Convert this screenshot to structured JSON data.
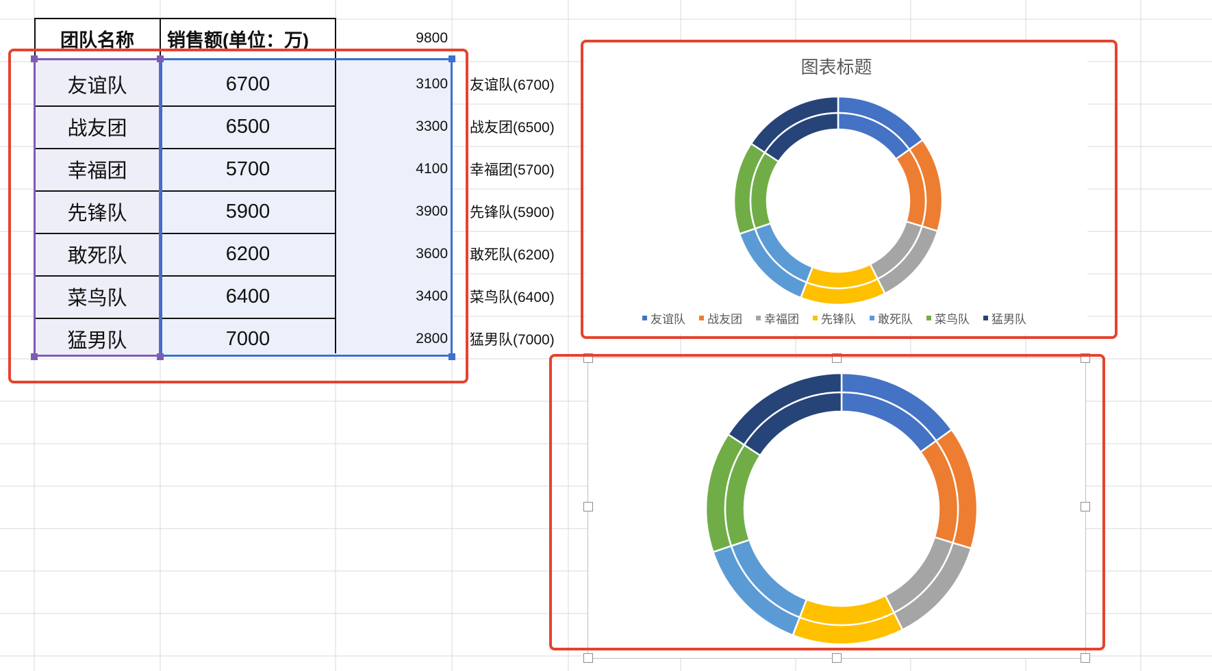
{
  "table": {
    "header": {
      "team": "团队名称",
      "sales": "销售额(单位：万)",
      "aux": "9800"
    },
    "rows": [
      {
        "team": "友谊队",
        "sales": "6700",
        "aux": "3100",
        "label": "友谊队(6700)"
      },
      {
        "team": "战友团",
        "sales": "6500",
        "aux": "3300",
        "label": "战友团(6500)"
      },
      {
        "team": "幸福团",
        "sales": "5700",
        "aux": "4100",
        "label": "幸福团(5700)"
      },
      {
        "team": "先锋队",
        "sales": "5900",
        "aux": "3900",
        "label": "先锋队(5900)"
      },
      {
        "team": "敢死队",
        "sales": "6200",
        "aux": "3600",
        "label": "敢死队(6200)"
      },
      {
        "team": "菜鸟队",
        "sales": "6400",
        "aux": "3400",
        "label": "菜鸟队(6400)"
      },
      {
        "team": "猛男队",
        "sales": "7000",
        "aux": "2800",
        "label": "猛男队(7000)"
      }
    ]
  },
  "chart_data": [
    {
      "type": "doughnut",
      "title": "图表标题",
      "categories": [
        "友谊队",
        "战友团",
        "幸福团",
        "先锋队",
        "敢死队",
        "菜鸟队",
        "猛男队"
      ],
      "series": [
        {
          "values": [
            6700,
            6500,
            5700,
            5900,
            6200,
            6400,
            7000
          ]
        },
        {
          "values": [
            6700,
            6500,
            5700,
            5900,
            6200,
            6400,
            7000
          ]
        }
      ],
      "legend": "bottom",
      "colors": [
        "#4472c4",
        "#ed7d31",
        "#a5a5a5",
        "#ffc000",
        "#5b9bd5",
        "#70ad47",
        "#264478"
      ]
    },
    {
      "type": "doughnut",
      "title": "",
      "categories": [
        "友谊队",
        "战友团",
        "幸福团",
        "先锋队",
        "敢死队",
        "菜鸟队",
        "猛男队"
      ],
      "series": [
        {
          "values": [
            6700,
            6500,
            5700,
            5900,
            6200,
            6400,
            7000
          ]
        },
        {
          "values": [
            6700,
            6500,
            5700,
            5900,
            6200,
            6400,
            7000
          ]
        }
      ],
      "legend": "none",
      "colors": [
        "#4472c4",
        "#ed7d31",
        "#a5a5a5",
        "#ffc000",
        "#5b9bd5",
        "#70ad47",
        "#264478"
      ]
    }
  ],
  "colors": {
    "highlight_red": "#e5432f",
    "select_purple": "#7d5bb5",
    "select_blue": "#3b6fd0",
    "grid_line": "#d9d9d9",
    "range_fill": "#ecf0fa"
  }
}
